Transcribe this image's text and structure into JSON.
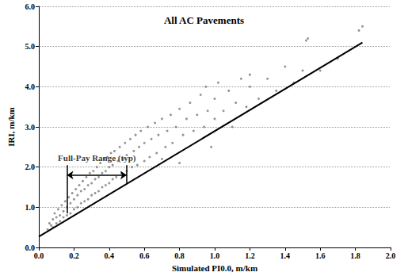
{
  "chart_data": {
    "type": "scatter",
    "title": "All AC Pavements",
    "x_label": "Simulated PI0.0, m/km",
    "y_label": "IRI, m/km",
    "xlim": [
      0,
      2
    ],
    "ylim": [
      0,
      6
    ],
    "xticks": [
      {
        "value": 0,
        "label": "0.0"
      },
      {
        "value": 0.2,
        "label": "0.2"
      },
      {
        "value": 0.4,
        "label": "0.4"
      },
      {
        "value": 0.6,
        "label": "0.6"
      },
      {
        "value": 0.8,
        "label": "0.8"
      },
      {
        "value": 1,
        "label": "1.0"
      },
      {
        "value": 1.2,
        "label": "1.2"
      },
      {
        "value": 1.4,
        "label": "1.4"
      },
      {
        "value": 1.6,
        "label": "1.6"
      },
      {
        "value": 1.8,
        "label": "1.8"
      },
      {
        "value": 2,
        "label": "2.0"
      }
    ],
    "yticks": [
      {
        "value": 0,
        "label": "0.0"
      },
      {
        "value": 1,
        "label": "1.0"
      },
      {
        "value": 2,
        "label": "2.0"
      },
      {
        "value": 3,
        "label": "3.0"
      },
      {
        "value": 4,
        "label": "4.0"
      },
      {
        "value": 5,
        "label": "5.0"
      },
      {
        "value": 6,
        "label": "6.0"
      }
    ],
    "grid": "y",
    "series": [
      {
        "type": "scatter",
        "color": "#7a7a7a",
        "marker": "circle",
        "x": [
          0.05,
          0.06,
          0.07,
          0.08,
          0.08,
          0.09,
          0.1,
          0.1,
          0.11,
          0.12,
          0.12,
          0.13,
          0.14,
          0.14,
          0.15,
          0.16,
          0.16,
          0.17,
          0.18,
          0.18,
          0.19,
          0.2,
          0.2,
          0.21,
          0.22,
          0.22,
          0.23,
          0.24,
          0.24,
          0.25,
          0.26,
          0.26,
          0.27,
          0.28,
          0.28,
          0.29,
          0.3,
          0.3,
          0.31,
          0.32,
          0.32,
          0.33,
          0.34,
          0.34,
          0.35,
          0.36,
          0.36,
          0.37,
          0.38,
          0.38,
          0.39,
          0.4,
          0.4,
          0.41,
          0.42,
          0.42,
          0.43,
          0.44,
          0.45,
          0.46,
          0.47,
          0.48,
          0.49,
          0.5,
          0.5,
          0.52,
          0.53,
          0.54,
          0.55,
          0.56,
          0.57,
          0.58,
          0.6,
          0.6,
          0.62,
          0.63,
          0.64,
          0.66,
          0.67,
          0.68,
          0.7,
          0.7,
          0.72,
          0.73,
          0.75,
          0.76,
          0.78,
          0.8,
          0.8,
          0.82,
          0.84,
          0.86,
          0.88,
          0.9,
          0.92,
          0.94,
          0.95,
          0.96,
          0.98,
          1.0,
          1.0,
          1.02,
          1.05,
          1.08,
          1.1,
          1.12,
          1.15,
          1.18,
          1.2,
          1.2,
          1.25,
          1.3,
          1.35,
          1.4,
          1.45,
          1.5,
          1.52,
          1.53,
          1.6,
          1.7,
          1.82,
          1.84
        ],
        "values": [
          0.45,
          0.6,
          0.55,
          0.7,
          0.5,
          0.85,
          0.6,
          0.75,
          0.95,
          0.65,
          0.8,
          1.05,
          0.75,
          0.9,
          1.15,
          0.8,
          1.0,
          1.25,
          0.85,
          1.1,
          1.35,
          0.95,
          1.2,
          1.45,
          1.0,
          1.3,
          1.55,
          1.1,
          1.4,
          1.65,
          1.15,
          1.45,
          1.75,
          1.2,
          1.55,
          1.85,
          1.3,
          1.6,
          1.9,
          1.35,
          1.7,
          2.0,
          1.4,
          1.75,
          2.1,
          1.5,
          1.85,
          2.2,
          1.55,
          1.9,
          2.25,
          1.6,
          2.0,
          2.35,
          1.7,
          2.05,
          2.4,
          1.75,
          2.15,
          2.5,
          1.85,
          2.2,
          2.6,
          1.9,
          2.3,
          2.7,
          2.0,
          2.4,
          2.8,
          2.05,
          2.5,
          2.9,
          2.15,
          2.6,
          3.0,
          2.25,
          2.7,
          3.1,
          2.35,
          2.8,
          2.2,
          3.2,
          2.5,
          2.9,
          3.3,
          2.6,
          3.0,
          2.1,
          3.45,
          2.8,
          3.2,
          3.6,
          2.9,
          3.3,
          3.8,
          3.0,
          4.0,
          3.4,
          2.5,
          3.2,
          3.7,
          4.1,
          3.4,
          3.9,
          3.0,
          3.6,
          4.2,
          3.5,
          4.0,
          4.3,
          3.7,
          4.2,
          3.9,
          4.5,
          4.1,
          4.4,
          5.15,
          5.2,
          4.4,
          4.7,
          5.4,
          5.5
        ]
      },
      {
        "type": "line",
        "color": "#000000",
        "line_style": "solid",
        "x": [
          0,
          1.84
        ],
        "values": [
          0.27,
          5.1
        ]
      }
    ],
    "annotations": [
      {
        "text": "Full-Pay Range (typ)",
        "range": [
          0.16,
          0.5
        ],
        "arrow_y": 1.8,
        "top": 2.05,
        "bottoms": [
          0.85,
          1.6
        ]
      }
    ]
  }
}
